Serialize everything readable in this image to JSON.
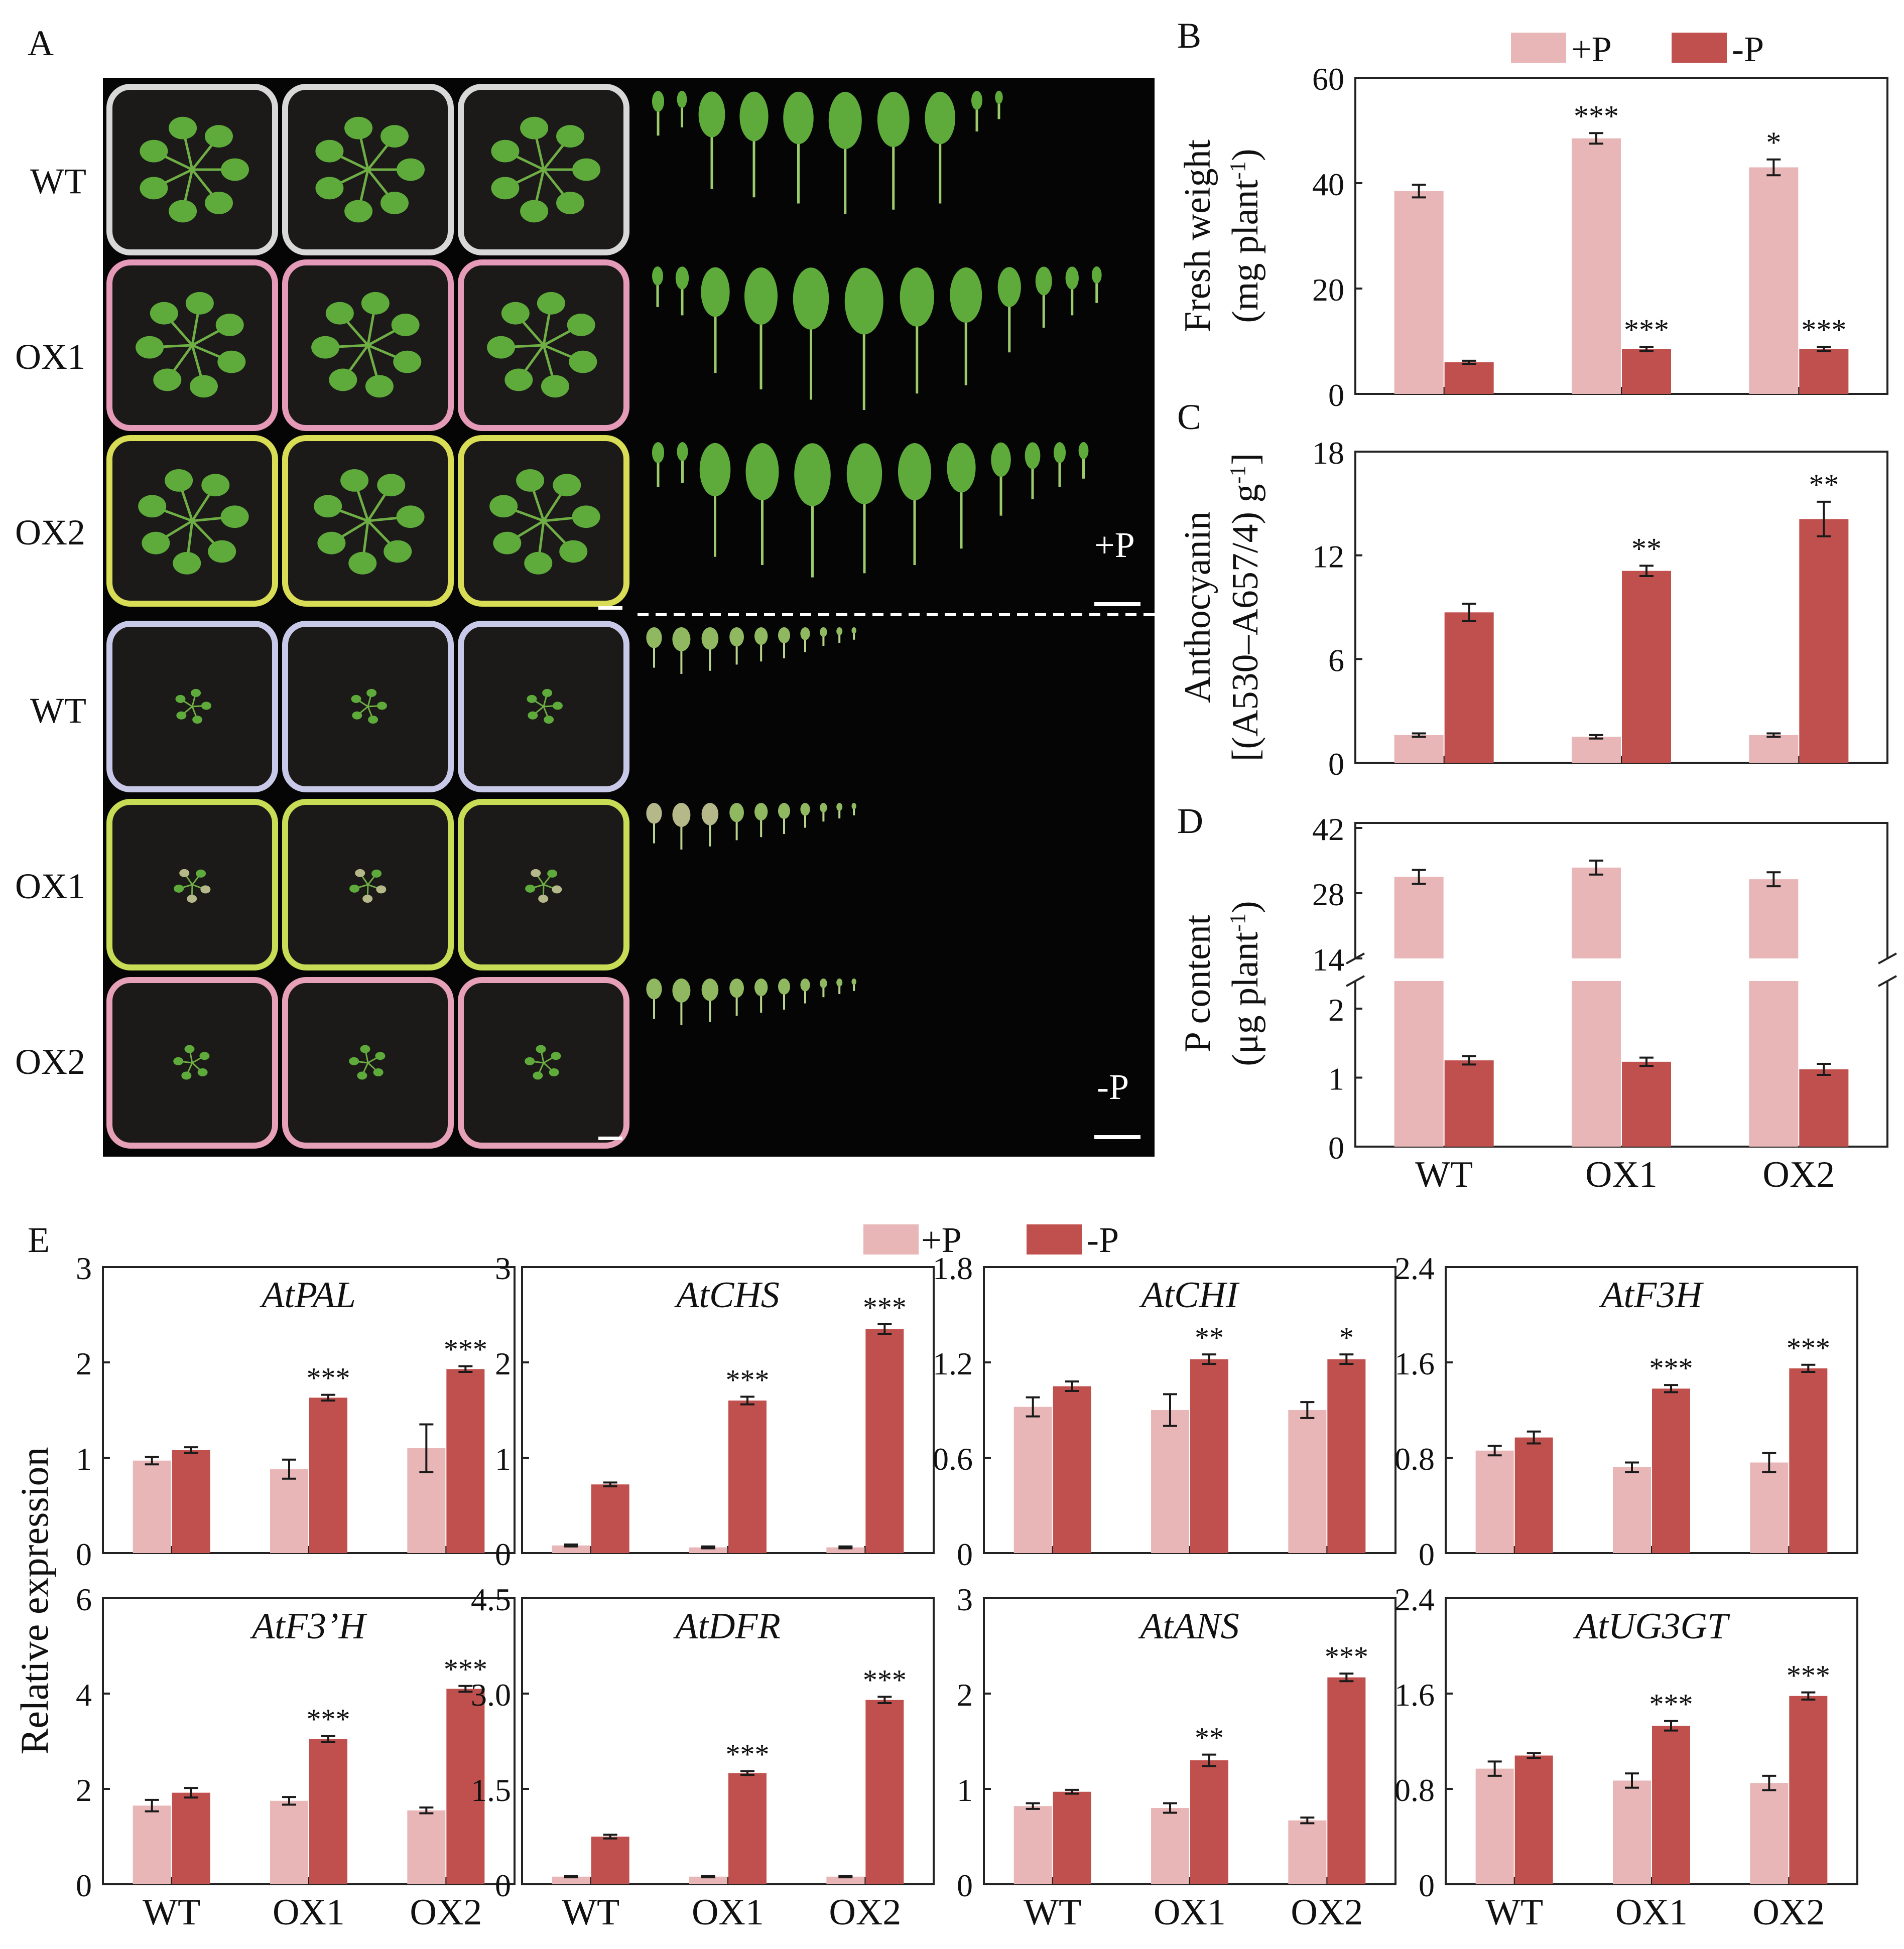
{
  "panel_letters": {
    "A": "A",
    "B": "B",
    "C": "C",
    "D": "D",
    "E": "E"
  },
  "panel_a": {
    "rows": [
      "WT",
      "OX1",
      "OX2",
      "WT",
      "OX1",
      "OX2"
    ],
    "treatment_plus": "+P",
    "treatment_minus": "-P"
  },
  "legend": {
    "plus": "+P",
    "minus": "-P"
  },
  "colors": {
    "plus": "#E8B6B6",
    "minus": "#C0504D",
    "error": "#1a1a1a",
    "soil": "#1b1a18",
    "leaf": "#5eab3c",
    "leaf_pale": "#b5b98a"
  },
  "genotypes": [
    "WT",
    "OX1",
    "OX2"
  ],
  "chart_data": [
    {
      "id": "B",
      "type": "bar",
      "ylabel": "Fresh weight",
      "ylabel_units": "(mg plant",
      "ylabel_sup": "-1",
      "ylabel_close": ")",
      "categories": [
        "WT",
        "OX1",
        "OX2"
      ],
      "ylim": [
        0,
        60
      ],
      "yticks": [
        "0",
        "20",
        "40",
        "60"
      ],
      "series": [
        {
          "name": "+P",
          "values": [
            38.5,
            48.5,
            43.0
          ],
          "errors": [
            1.2,
            1.0,
            1.5
          ],
          "stars": [
            "",
            "***",
            "*"
          ]
        },
        {
          "name": "-P",
          "values": [
            6.0,
            8.5,
            8.5
          ],
          "errors": [
            0.3,
            0.4,
            0.4
          ],
          "stars": [
            "",
            "***",
            "***"
          ]
        }
      ]
    },
    {
      "id": "C",
      "type": "bar",
      "ylabel": "Anthocyanin",
      "ylabel_units": "[(A530–A657/4) g",
      "ylabel_sup": "-1",
      "ylabel_close": "]",
      "categories": [
        "WT",
        "OX1",
        "OX2"
      ],
      "ylim": [
        0,
        18
      ],
      "yticks": [
        "0",
        "6",
        "12",
        "18"
      ],
      "series": [
        {
          "name": "+P",
          "values": [
            1.6,
            1.5,
            1.6
          ],
          "errors": [
            0.1,
            0.1,
            0.1
          ],
          "stars": [
            "",
            "",
            ""
          ]
        },
        {
          "name": "-P",
          "values": [
            8.7,
            11.1,
            14.1
          ],
          "errors": [
            0.5,
            0.3,
            1.0
          ],
          "stars": [
            "",
            "**",
            "**"
          ]
        }
      ]
    },
    {
      "id": "D",
      "type": "bar",
      "ylabel": "P content",
      "ylabel_units": "(μg plant",
      "ylabel_sup": "-1",
      "ylabel_close": ")",
      "categories": [
        "WT",
        "OX1",
        "OX2"
      ],
      "broken_axis": true,
      "lower_ylim": [
        0,
        2.4
      ],
      "upper_ylim": [
        14,
        42
      ],
      "lower_yticks": [
        "0",
        "1",
        "2"
      ],
      "upper_yticks": [
        "14",
        "28",
        "42"
      ],
      "series": [
        {
          "name": "+P",
          "values": [
            31.5,
            33.5,
            31.0
          ],
          "errors": [
            1.5,
            1.5,
            1.5
          ],
          "stars": [
            "",
            "",
            ""
          ]
        },
        {
          "name": "-P",
          "values": [
            1.25,
            1.23,
            1.12
          ],
          "errors": [
            0.06,
            0.06,
            0.08
          ],
          "stars": [
            "",
            "",
            ""
          ]
        }
      ]
    }
  ],
  "panel_e": {
    "ylabel": "Relative expression",
    "genes": [
      {
        "gene": "AtPAL",
        "ylim": [
          0,
          3
        ],
        "yticks": [
          "0",
          "1",
          "2",
          "3"
        ],
        "plus": [
          0.97,
          0.88,
          1.1
        ],
        "plus_err": [
          0.04,
          0.1,
          0.25
        ],
        "minus": [
          1.08,
          1.63,
          1.93
        ],
        "minus_err": [
          0.03,
          0.03,
          0.03
        ],
        "stars": [
          "",
          "***",
          "***"
        ]
      },
      {
        "gene": "AtCHS",
        "ylim": [
          0,
          3
        ],
        "yticks": [
          "0",
          "1",
          "2",
          "3"
        ],
        "plus": [
          0.08,
          0.06,
          0.06
        ],
        "plus_err": [
          0.01,
          0.01,
          0.01
        ],
        "minus": [
          0.72,
          1.6,
          2.35
        ],
        "minus_err": [
          0.02,
          0.04,
          0.05
        ],
        "stars": [
          "",
          "***",
          "***"
        ]
      },
      {
        "gene": "AtCHI",
        "ylim": [
          0,
          1.8
        ],
        "yticks": [
          "0",
          "0.6",
          "1.2",
          "1.8"
        ],
        "plus": [
          0.92,
          0.9,
          0.9
        ],
        "plus_err": [
          0.06,
          0.1,
          0.05
        ],
        "minus": [
          1.05,
          1.22,
          1.22
        ],
        "minus_err": [
          0.03,
          0.03,
          0.03
        ],
        "stars": [
          "",
          "**",
          "*"
        ]
      },
      {
        "gene": "AtF3H",
        "ylim": [
          0,
          2.4
        ],
        "yticks": [
          "0",
          "0.8",
          "1.6",
          "2.4"
        ],
        "plus": [
          0.86,
          0.72,
          0.76
        ],
        "plus_err": [
          0.04,
          0.04,
          0.08
        ],
        "minus": [
          0.97,
          1.38,
          1.55
        ],
        "minus_err": [
          0.05,
          0.03,
          0.03
        ],
        "stars": [
          "",
          "***",
          "***"
        ]
      },
      {
        "gene": "AtF3’H",
        "ylim": [
          0,
          6
        ],
        "yticks": [
          "0",
          "2",
          "4",
          "6"
        ],
        "plus": [
          1.65,
          1.75,
          1.55
        ],
        "plus_err": [
          0.12,
          0.08,
          0.06
        ],
        "minus": [
          1.92,
          3.05,
          4.1
        ],
        "minus_err": [
          0.1,
          0.06,
          0.06
        ],
        "stars": [
          "",
          "***",
          "***"
        ]
      },
      {
        "gene": "AtDFR",
        "ylim": [
          0,
          4.5
        ],
        "yticks": [
          "0",
          "1.5",
          "3.0",
          "4.5"
        ],
        "plus": [
          0.12,
          0.12,
          0.12
        ],
        "plus_err": [
          0.01,
          0.01,
          0.01
        ],
        "minus": [
          0.75,
          1.75,
          2.9
        ],
        "minus_err": [
          0.03,
          0.03,
          0.05
        ],
        "stars": [
          "",
          "***",
          "***"
        ]
      },
      {
        "gene": "AtANS",
        "ylim": [
          0,
          3
        ],
        "yticks": [
          "0",
          "1",
          "2",
          "3"
        ],
        "plus": [
          0.82,
          0.8,
          0.67
        ],
        "plus_err": [
          0.03,
          0.05,
          0.03
        ],
        "minus": [
          0.97,
          1.3,
          2.17
        ],
        "minus_err": [
          0.02,
          0.06,
          0.04
        ],
        "stars": [
          "",
          "**",
          "***"
        ]
      },
      {
        "gene": "AtUG3GT",
        "ylim": [
          0,
          2.4
        ],
        "yticks": [
          "0",
          "0.8",
          "1.6",
          "2.4"
        ],
        "plus": [
          0.97,
          0.87,
          0.85
        ],
        "plus_err": [
          0.06,
          0.06,
          0.06
        ],
        "minus": [
          1.08,
          1.33,
          1.58
        ],
        "minus_err": [
          0.02,
          0.04,
          0.03
        ],
        "stars": [
          "",
          "***",
          "***"
        ]
      }
    ]
  }
}
